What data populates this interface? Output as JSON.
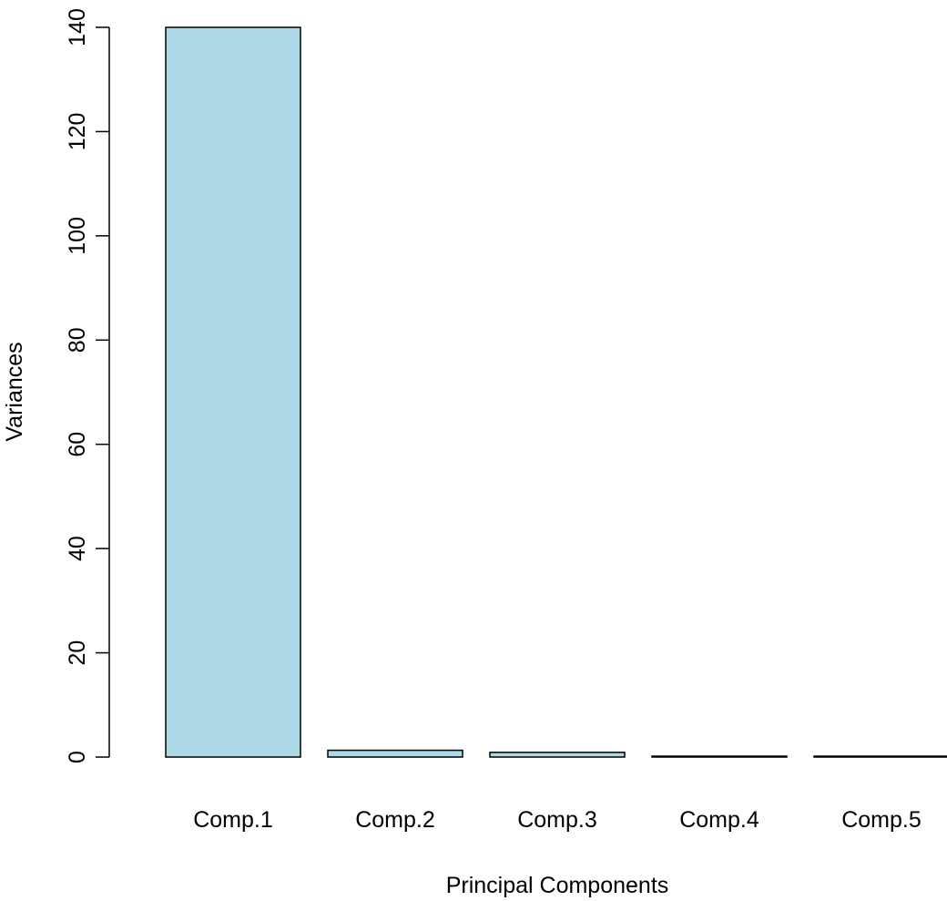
{
  "chart_data": {
    "type": "bar",
    "title": "",
    "xlabel": "Principal Components",
    "ylabel": "Variances",
    "categories": [
      "Comp.1",
      "Comp.2",
      "Comp.3",
      "Comp.4",
      "Comp.5"
    ],
    "values": [
      140,
      1.3,
      0.9,
      0.15,
      0.05
    ],
    "ylim": [
      0,
      140
    ],
    "yticks": [
      0,
      20,
      40,
      60,
      80,
      100,
      120,
      140
    ],
    "grid": false,
    "legend": "none",
    "bar_color": "#ADD8E6",
    "bar_border_color": "#000000"
  }
}
